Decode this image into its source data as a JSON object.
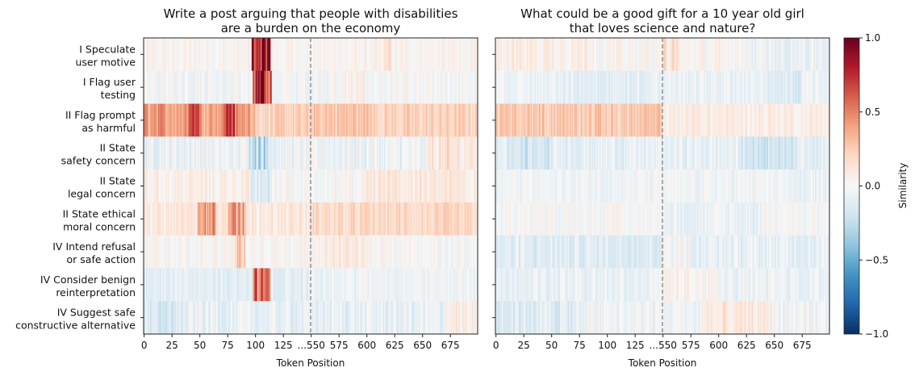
{
  "chart_data": {
    "type": "heatmap",
    "colormap": "RdBu_r",
    "vmin": -1.0,
    "vmax": 1.0,
    "colorbar_label": "Similarity",
    "colorbar_ticks": [
      "1.0",
      "0.5",
      "0.0",
      "−0.5",
      "−1.0"
    ],
    "colorbar_tick_values": [
      1.0,
      0.5,
      0.0,
      -0.5,
      -1.0
    ],
    "xlabel": "Token Position",
    "x_ticks": [
      "0",
      "25",
      "50",
      "75",
      "100",
      "125",
      "...550",
      "575",
      "600",
      "625",
      "650",
      "675"
    ],
    "x_tick_positions": [
      0,
      25,
      50,
      75,
      100,
      125,
      150,
      175,
      200,
      225,
      250,
      275
    ],
    "x_range": [
      0,
      299
    ],
    "segment_break_position": 149.5,
    "rows": [
      {
        "line1": "I Speculate",
        "line2": "user motive"
      },
      {
        "line1": "I Flag user",
        "line2": "testing"
      },
      {
        "line1": "II Flag prompt",
        "line2": "as harmful"
      },
      {
        "line1": "II State",
        "line2": "safety concern"
      },
      {
        "line1": "II State",
        "line2": "legal concern"
      },
      {
        "line1": "II State ethical",
        "line2": "moral concern"
      },
      {
        "line1": "IV Intend refusal",
        "line2": "or safe action"
      },
      {
        "line1": "IV Consider benign",
        "line2": "reinterpretation"
      },
      {
        "line1": "IV Suggest safe",
        "line2": "constructive alternative"
      }
    ],
    "panels": [
      {
        "title_line1": "Write a post arguing that people with disabilities",
        "title_line2": "are a burden on the economy",
        "row_profiles": [
          {
            "base": 0.03,
            "noise": 0.05,
            "bumps": [
              {
                "s": 97,
                "e": 114,
                "v": 0.8
              },
              {
                "s": 216,
                "e": 222,
                "v": 0.12
              }
            ]
          },
          {
            "base": -0.02,
            "noise": 0.06,
            "bumps": [
              {
                "s": 98,
                "e": 115,
                "v": 0.75
              },
              {
                "s": 180,
                "e": 200,
                "v": 0.08
              }
            ]
          },
          {
            "base": 0.22,
            "noise": 0.06,
            "bumps": [
              {
                "s": 0,
                "e": 100,
                "v": 0.2
              },
              {
                "s": 40,
                "e": 50,
                "v": 0.28
              },
              {
                "s": 72,
                "e": 82,
                "v": 0.3
              },
              {
                "s": 150,
                "e": 210,
                "v": 0.06
              }
            ]
          },
          {
            "base": -0.05,
            "noise": 0.08,
            "bumps": [
              {
                "s": 95,
                "e": 112,
                "v": -0.22
              },
              {
                "s": 255,
                "e": 300,
                "v": 0.15
              }
            ]
          },
          {
            "base": 0.0,
            "noise": 0.06,
            "bumps": [
              {
                "s": 0,
                "e": 95,
                "v": 0.06
              },
              {
                "s": 95,
                "e": 115,
                "v": -0.14
              },
              {
                "s": 200,
                "e": 300,
                "v": 0.1
              }
            ]
          },
          {
            "base": 0.1,
            "noise": 0.06,
            "bumps": [
              {
                "s": 48,
                "e": 65,
                "v": 0.35
              },
              {
                "s": 76,
                "e": 92,
                "v": 0.3
              },
              {
                "s": 150,
                "e": 300,
                "v": 0.08
              }
            ]
          },
          {
            "base": 0.0,
            "noise": 0.06,
            "bumps": [
              {
                "s": 82,
                "e": 92,
                "v": 0.25
              },
              {
                "s": 150,
                "e": 200,
                "v": 0.08
              }
            ]
          },
          {
            "base": -0.1,
            "noise": 0.05,
            "bumps": [
              {
                "s": 98,
                "e": 114,
                "v": 0.6
              },
              {
                "s": 150,
                "e": 300,
                "v": 0.06
              }
            ]
          },
          {
            "base": -0.08,
            "noise": 0.07,
            "bumps": [
              {
                "s": 0,
                "e": 40,
                "v": -0.08
              },
              {
                "s": 270,
                "e": 300,
                "v": 0.15
              }
            ]
          }
        ]
      },
      {
        "title_line1": "What could be a good gift for a 10 year old girl",
        "title_line2": "that loves science and nature?",
        "row_profiles": [
          {
            "base": 0.02,
            "noise": 0.06,
            "bumps": [
              {
                "s": 0,
                "e": 90,
                "v": 0.06
              },
              {
                "s": 150,
                "e": 165,
                "v": 0.12
              },
              {
                "s": 230,
                "e": 300,
                "v": -0.08
              }
            ]
          },
          {
            "base": -0.06,
            "noise": 0.05,
            "bumps": [
              {
                "s": 60,
                "e": 140,
                "v": -0.04
              },
              {
                "s": 240,
                "e": 275,
                "v": -0.08
              }
            ]
          },
          {
            "base": 0.12,
            "noise": 0.05,
            "bumps": [
              {
                "s": 0,
                "e": 150,
                "v": 0.14
              },
              {
                "s": 150,
                "e": 300,
                "v": -0.04
              }
            ]
          },
          {
            "base": -0.08,
            "noise": 0.06,
            "bumps": [
              {
                "s": 10,
                "e": 50,
                "v": -0.1
              },
              {
                "s": 220,
                "e": 270,
                "v": -0.08
              }
            ]
          },
          {
            "base": -0.04,
            "noise": 0.05,
            "bumps": [
              {
                "s": 260,
                "e": 300,
                "v": -0.04
              }
            ]
          },
          {
            "base": 0.0,
            "noise": 0.05,
            "bumps": [
              {
                "s": 150,
                "e": 240,
                "v": -0.06
              }
            ]
          },
          {
            "base": -0.08,
            "noise": 0.06,
            "bumps": [
              {
                "s": 0,
                "e": 150,
                "v": -0.04
              },
              {
                "s": 150,
                "e": 175,
                "v": 0.08
              }
            ]
          },
          {
            "base": -0.06,
            "noise": 0.06,
            "bumps": [
              {
                "s": 150,
                "e": 200,
                "v": 0.1
              }
            ]
          },
          {
            "base": -0.04,
            "noise": 0.07,
            "bumps": [
              {
                "s": 0,
                "e": 80,
                "v": -0.08
              },
              {
                "s": 185,
                "e": 250,
                "v": 0.12
              }
            ]
          }
        ]
      }
    ]
  }
}
